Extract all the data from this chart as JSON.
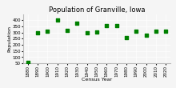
{
  "title": "Population of Granville, Iowa",
  "xlabel": "Census Year",
  "ylabel": "Population",
  "years": [
    1880,
    1890,
    1900,
    1910,
    1920,
    1930,
    1940,
    1950,
    1960,
    1970,
    1980,
    1990,
    2000,
    2010,
    2020
  ],
  "population": [
    57,
    296,
    313,
    402,
    319,
    375,
    298,
    304,
    356,
    356,
    261,
    313,
    279,
    313,
    313
  ],
  "marker_color": "#008000",
  "marker": "s",
  "marker_size": 9,
  "ylim": [
    50,
    450
  ],
  "yticks": [
    50,
    100,
    150,
    200,
    250,
    300,
    350,
    400
  ],
  "xlim": [
    1875,
    2025
  ],
  "xticks": [
    1880,
    1890,
    1900,
    1910,
    1920,
    1930,
    1940,
    1950,
    1960,
    1970,
    1980,
    1990,
    2000,
    2010,
    2020
  ],
  "bg_color": "#f5f5f5",
  "title_fontsize": 6,
  "label_fontsize": 4.5,
  "tick_fontsize": 4
}
